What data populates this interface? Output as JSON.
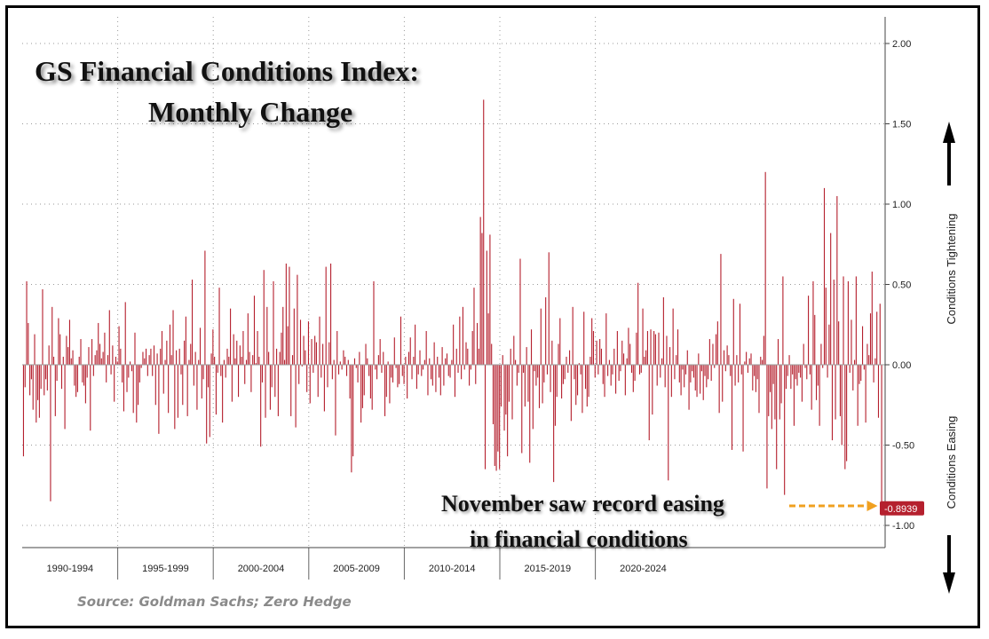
{
  "chart_data": {
    "type": "bar",
    "title_line1": "GS Financial Conditions Index:",
    "title_line2": "Monthly Change",
    "annotation_line1": "November saw record easing",
    "annotation_line2": "in financial conditions",
    "source": "Source: Goldman Sachs; Zero Hedge",
    "ylim": [
      -1.1,
      2.1
    ],
    "yticks": [
      2.0,
      1.5,
      1.0,
      0.5,
      0.0,
      -0.5,
      -1.0
    ],
    "ytick_labels": [
      "2.00",
      "1.50",
      "1.00",
      "0.50",
      "0.00",
      "-0.50",
      "-1.00"
    ],
    "period_labels": [
      "1990-1994",
      "1995-1999",
      "2000-2004",
      "2005-2009",
      "2010-2014",
      "2015-2019",
      "2020-2024"
    ],
    "side_label_up": "Conditions Tightening",
    "side_label_down": "Conditions Easing",
    "last_value": -0.8939,
    "last_value_label": "-0.8939",
    "start": "1990-01",
    "frequency": "monthly",
    "colors": {
      "bar": "#b5202e",
      "last_label_bg": "#b5202e",
      "arrow": "#f0a020"
    },
    "values": [
      -0.57,
      -0.14,
      0.52,
      0.26,
      -0.19,
      -0.09,
      -0.28,
      0.19,
      -0.36,
      -0.22,
      -0.33,
      -0.15,
      0.47,
      -0.19,
      -0.09,
      -0.16,
      0.12,
      -0.85,
      0.36,
      0.05,
      -0.32,
      -0.1,
      0.29,
      0.19,
      -0.15,
      0.05,
      -0.4,
      0.18,
      0.11,
      0.28,
      0.04,
      0.09,
      -0.13,
      -0.2,
      -0.17,
      0.05,
      0.16,
      -0.11,
      -0.13,
      -0.24,
      -0.08,
      0.11,
      -0.41,
      0.16,
      -0.07,
      0.06,
      0.09,
      0.26,
      0.13,
      0.04,
      0.08,
      0.2,
      -0.11,
      0.06,
      0.34,
      -0.06,
      0.12,
      -0.23,
      0.05,
      0.02,
      0.24,
      0.1,
      -0.11,
      -0.29,
      0.39,
      -0.17,
      -0.08,
      0.02,
      -0.04,
      -0.3,
      0.2,
      -0.36,
      -0.25,
      -0.11,
      -0.02,
      0.08,
      0.04,
      0.1,
      -0.07,
      0.06,
      0.1,
      -0.07,
      0.12,
      -0.25,
      0.07,
      -0.43,
      0.1,
      0.21,
      -0.18,
      0.03,
      0.15,
      -0.3,
      0.25,
      0.06,
      0.34,
      -0.4,
      0.09,
      -0.33,
      0.1,
      -0.06,
      -0.25,
      0.15,
      0.3,
      -0.32,
      0.03,
      0.13,
      0.53,
      -0.13,
      0.08,
      -0.28,
      0.03,
      0.23,
      -0.21,
      -0.09,
      0.71,
      -0.49,
      -0.14,
      -0.45,
      0.07,
      0.22,
      0.05,
      -0.31,
      -0.05,
      0.48,
      -0.07,
      -0.36,
      0.03,
      -0.08,
      0.1,
      0.05,
      0.35,
      -0.23,
      0.19,
      0.04,
      0.15,
      -0.2,
      0.12,
      0.05,
      0.21,
      -0.12,
      0.03,
      0.32,
      0.08,
      -0.17,
      0.06,
      0.43,
      0.01,
      0.21,
      0.05,
      -0.51,
      -0.11,
      0.59,
      -0.33,
      0.36,
      0.08,
      -0.28,
      -0.14,
      0.52,
      -0.2,
      0.1,
      -0.32,
      0.08,
      0.2,
      0.36,
      0.03,
      0.63,
      0.24,
      0.61,
      -0.32,
      0.06,
      0.35,
      -0.39,
      0.56,
      -0.12,
      0.28,
      -0.01,
      0.18,
      0.09,
      -0.17,
      0.27,
      -0.24,
      0.16,
      -0.05,
      0.18,
      0.14,
      -0.2,
      0.3,
      -0.08,
      0.13,
      -0.29,
      0.61,
      -0.14,
      0.14,
      0.63,
      -0.09,
      0.03,
      -0.44,
      0.21,
      -0.06,
      0.02,
      -0.03,
      0.09,
      0.05,
      -0.07,
      0.03,
      -0.21,
      -0.67,
      -0.57,
      0.04,
      -0.02,
      -0.11,
      0.08,
      -0.36,
      -0.27,
      -0.19,
      0.13,
      0.04,
      -0.07,
      -0.21,
      -0.28,
      0.52,
      -0.03,
      -0.09,
      0.06,
      0.16,
      -0.05,
      0.08,
      -0.32,
      -0.2,
      0.02,
      -0.24,
      -0.08,
      -0.11,
      0.17,
      -0.02,
      -0.14,
      -0.12,
      0.3,
      -0.07,
      -0.12,
      0.05,
      -0.21,
      0.08,
      0.17,
      -0.09,
      0.05,
      0.25,
      -0.15,
      -0.06,
      0.09,
      -0.07,
      -0.03,
      0.03,
      0.21,
      -0.19,
      0.04,
      -0.09,
      -0.13,
      0.14,
      -0.17,
      0.05,
      -0.08,
      -0.19,
      0.11,
      -0.13,
      0.04,
      0.07,
      -0.07,
      -0.08,
      0.03,
      0.25,
      -0.2,
      0.1,
      -0.05,
      0.3,
      -0.09,
      0.36,
      -0.03,
      0.14,
      0.1,
      -0.13,
      -0.03,
      0.21,
      0.48,
      -0.12,
      0.26,
      0.1,
      0.92,
      0.82,
      1.65,
      -0.65,
      0.71,
      0.32,
      0.81,
      0.13,
      -0.37,
      -0.63,
      -0.66,
      -0.54,
      -0.65,
      -0.26,
      0.06,
      -0.41,
      -0.31,
      -0.57,
      -0.23,
      0.1,
      -0.34,
      0.18,
      0.03,
      -0.13,
      -0.05,
      0.66,
      -0.55,
      -0.05,
      -0.26,
      0.11,
      -0.23,
      -0.61,
      0.22,
      -0.4,
      -0.04,
      -0.13,
      -0.08,
      -0.27,
      0.35,
      -0.24,
      -0.11,
      0.42,
      -0.06,
      0.7,
      -0.17,
      0.15,
      -0.73,
      -0.38,
      -0.2,
      0.13,
      0.29,
      -0.21,
      -0.12,
      -0.09,
      0.05,
      -0.05,
      0.09,
      -0.35,
      0.36,
      -0.09,
      -0.25,
      -0.19,
      0.01,
      -0.06,
      -0.3,
      0.33,
      -0.15,
      -0.26,
      -0.2,
      0.05,
      0.29,
      0.21,
      -0.08,
      0.15,
      -0.06,
      0.16,
      0.1,
      -0.12,
      -0.2,
      0.32,
      -0.07,
      0.03,
      -0.13,
      -0.06,
      0.1,
      -0.18,
      0.21,
      -0.1,
      -0.04,
      0.15,
      0.07,
      -0.19,
      0.04,
      0.23,
      0.13,
      -0.05,
      -0.17,
      -0.1,
      0.2,
      0.51,
      -0.06,
      -0.05,
      0.35,
      0.05,
      0.09,
      0.21,
      -0.47,
      0.22,
      -0.31,
      0.21,
      0.19,
      -0.13,
      0.2,
      -0.08,
      0.04,
      0.42,
      -0.14,
      0.18,
      -0.72,
      0.11,
      -0.2,
      0.35,
      -0.09,
      0.06,
      0.22,
      -0.11,
      -0.19,
      -0.03,
      -0.14,
      -0.06,
      0.09,
      -0.28,
      -0.11,
      -0.04,
      -0.08,
      -0.16,
      -0.2,
      0.07,
      -0.18,
      -0.04,
      -0.22,
      -0.07,
      -0.14,
      -0.09,
      0.16,
      -0.1,
      0.13,
      -0.02,
      0.19,
      0.27,
      -0.3,
      0.69,
      -0.23,
      0.09,
      -0.04,
      0.12,
      0.06,
      -0.07,
      -0.53,
      0.41,
      -0.13,
      0.06,
      -0.11,
      0.38,
      -0.06,
      -0.54,
      0.02,
      0.08,
      -0.05,
      0.04,
      0.07,
      -0.16,
      -0.07,
      -0.17,
      -0.09,
      -0.3,
      0.05,
      0.03,
      0.18,
      1.2,
      -0.77,
      -0.32,
      -0.17,
      -0.4,
      -0.12,
      -0.34,
      -0.65,
      0.16,
      -0.34,
      -0.24,
      0.55,
      -0.81,
      -0.15,
      -0.07,
      0.06,
      -0.15,
      -0.06,
      -0.38,
      -0.09,
      -0.13,
      -0.05,
      -0.08,
      -0.23,
      0.13,
      -0.02,
      -0.09,
      0.43,
      -0.06,
      -0.28,
      0.52,
      0.31,
      -0.22,
      -0.13,
      -0.38,
      0.13,
      -0.02,
      1.1,
      0.48,
      -0.08,
      0.25,
      0.82,
      -0.47,
      0.53,
      -0.34,
      1.05,
      0.27,
      -0.32,
      -0.5,
      0.55,
      -0.65,
      -0.6,
      0.52,
      -0.05,
      0.28,
      -0.16,
      0.03,
      0.55,
      -0.38,
      -0.12,
      -0.1,
      0.24,
      -0.03,
      -0.36,
      0.13,
      0.06,
      0.32,
      0.58,
      -0.11,
      0.04,
      0.33,
      -0.33,
      0.38,
      -0.8939
    ]
  }
}
